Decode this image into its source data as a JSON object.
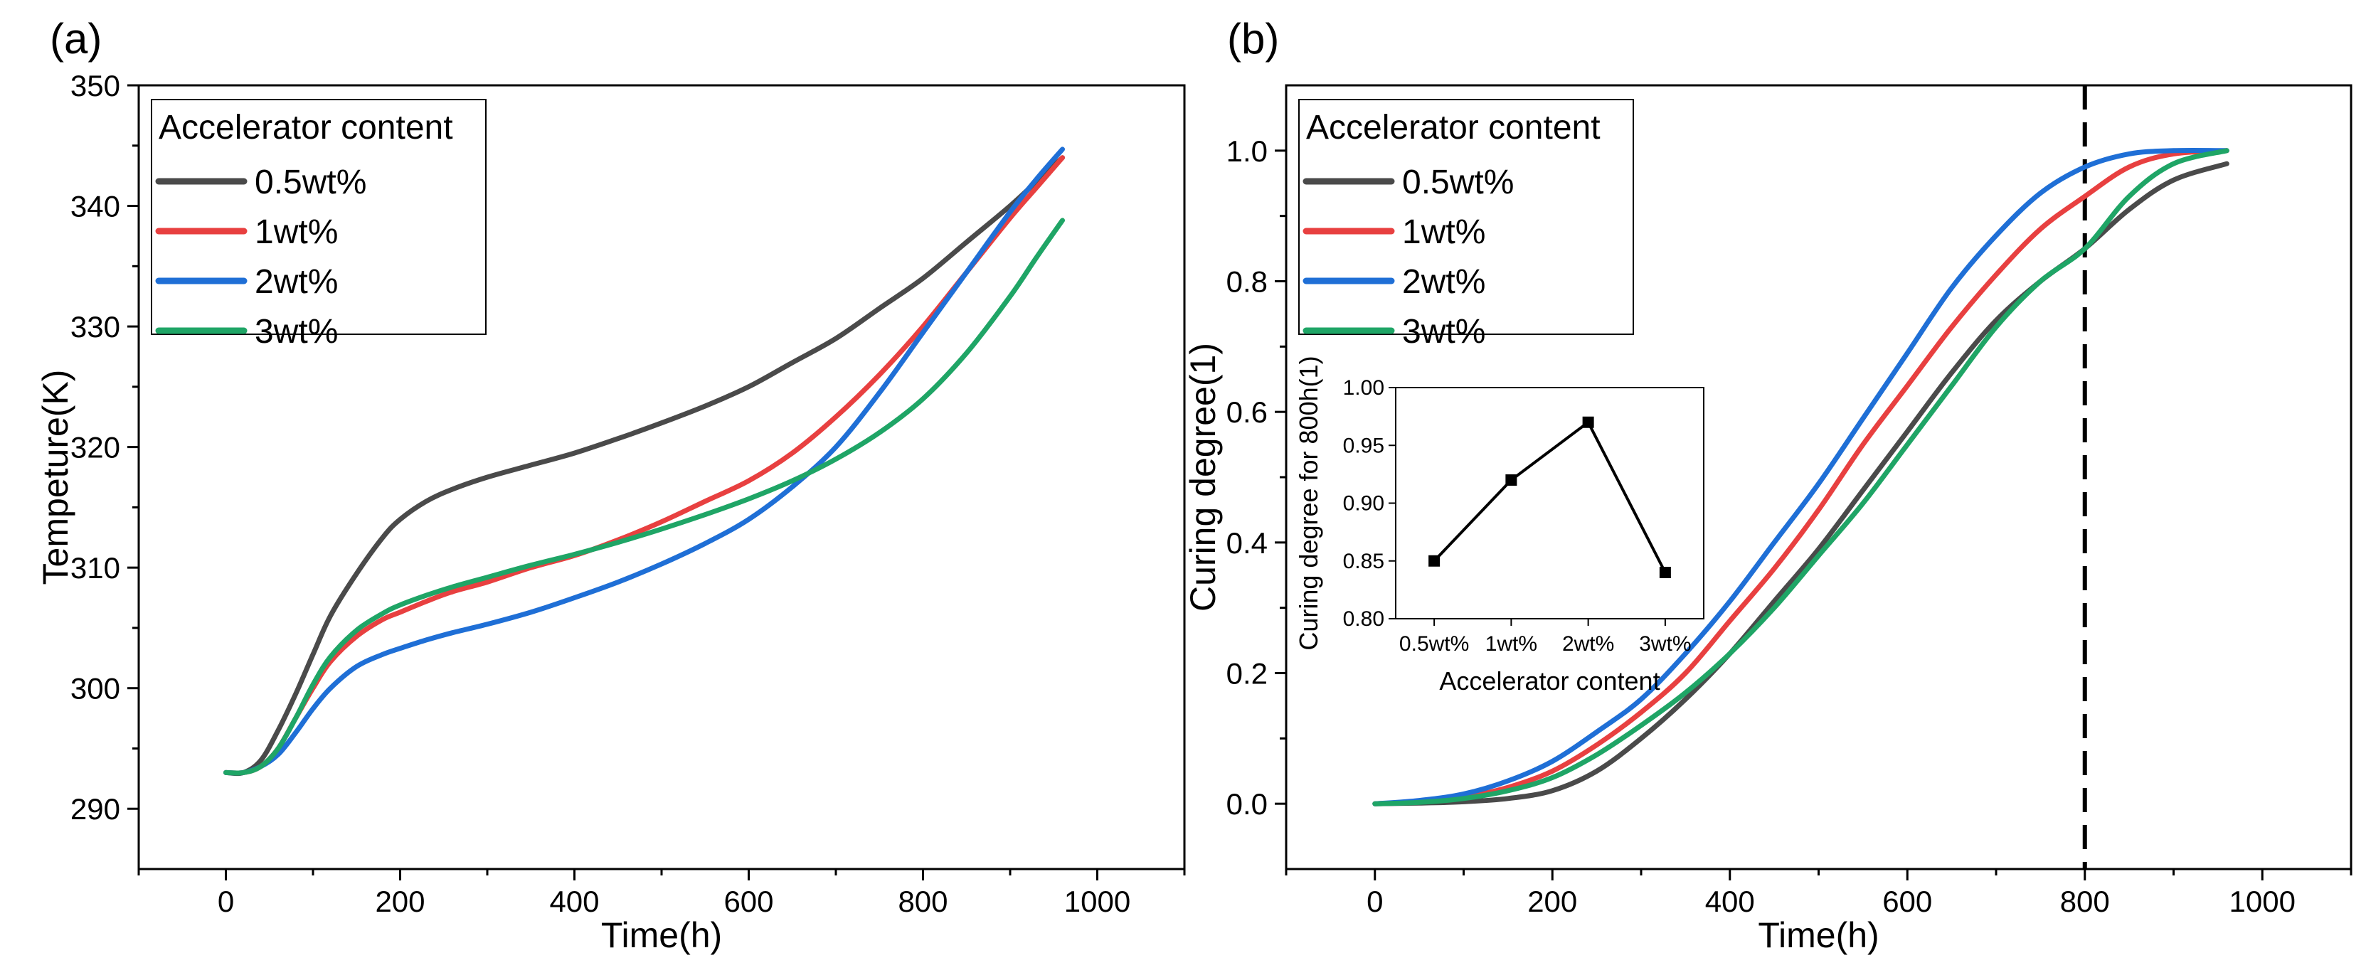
{
  "chart_data": [
    {
      "panel": "(a)",
      "type": "line",
      "xlabel": "Time(h)",
      "ylabel": "Tempeture(K)",
      "xlim": [
        -100,
        1100
      ],
      "ylim": [
        285,
        350
      ],
      "xticks": [
        0,
        200,
        400,
        600,
        800,
        1000
      ],
      "yticks": [
        290,
        300,
        310,
        320,
        330,
        340,
        350
      ],
      "legend": {
        "title": "Accelerator content",
        "position": "top-left"
      },
      "series": [
        {
          "name": "0.5wt%",
          "color": "#4a4a4a",
          "x": [
            0,
            20,
            40,
            60,
            80,
            100,
            120,
            150,
            180,
            200,
            230,
            260,
            300,
            350,
            400,
            450,
            500,
            550,
            600,
            650,
            700,
            750,
            800,
            850,
            900,
            930,
            960
          ],
          "y": [
            293,
            293,
            294,
            296.5,
            299.5,
            302.8,
            306,
            309.5,
            312.5,
            314,
            315.5,
            316.5,
            317.5,
            318.5,
            319.5,
            320.7,
            322,
            323.4,
            325,
            327,
            329,
            331.5,
            334,
            337,
            340,
            342,
            344
          ]
        },
        {
          "name": "1wt%",
          "color": "#e84040",
          "x": [
            0,
            20,
            40,
            60,
            80,
            100,
            120,
            150,
            180,
            200,
            230,
            260,
            300,
            350,
            400,
            450,
            500,
            550,
            600,
            650,
            700,
            750,
            800,
            850,
            900,
            930,
            960
          ],
          "y": [
            293,
            293,
            293.5,
            295,
            297.5,
            300,
            302.2,
            304.3,
            305.7,
            306.3,
            307.2,
            308,
            308.8,
            310,
            311,
            312.3,
            313.8,
            315.5,
            317.2,
            319.5,
            322.5,
            326,
            330,
            334.5,
            339,
            341.5,
            344
          ]
        },
        {
          "name": "2wt%",
          "color": "#1f6fd6",
          "x": [
            0,
            20,
            40,
            60,
            80,
            100,
            120,
            150,
            180,
            200,
            230,
            260,
            300,
            350,
            400,
            450,
            500,
            550,
            600,
            650,
            700,
            750,
            800,
            850,
            900,
            930,
            960
          ],
          "y": [
            293,
            293,
            293.5,
            294.5,
            296.3,
            298.3,
            300,
            301.8,
            302.8,
            303.3,
            304,
            304.6,
            305.3,
            306.3,
            307.5,
            308.8,
            310.3,
            312,
            314,
            316.7,
            320,
            324.5,
            329.5,
            334.5,
            339.5,
            342.2,
            344.7
          ]
        },
        {
          "name": "3wt%",
          "color": "#1fa566",
          "x": [
            0,
            20,
            40,
            60,
            80,
            100,
            120,
            150,
            180,
            200,
            230,
            260,
            300,
            350,
            400,
            450,
            500,
            550,
            600,
            650,
            700,
            750,
            800,
            850,
            900,
            930,
            960
          ],
          "y": [
            293,
            293,
            293.5,
            295,
            297.5,
            300.3,
            302.6,
            304.8,
            306.2,
            306.9,
            307.7,
            308.4,
            309.2,
            310.2,
            311.1,
            312.1,
            313.2,
            314.4,
            315.7,
            317.2,
            319,
            321.2,
            324,
            327.8,
            332.5,
            335.7,
            338.8
          ]
        }
      ]
    },
    {
      "panel": "(b)",
      "type": "line",
      "xlabel": "Time(h)",
      "ylabel": "Curing degree(1)",
      "xlim": [
        -100,
        1100
      ],
      "ylim": [
        -0.1,
        1.1
      ],
      "xticks": [
        0,
        200,
        400,
        600,
        800,
        1000
      ],
      "yticks": [
        0.0,
        0.2,
        0.4,
        0.6,
        0.8,
        1.0
      ],
      "yticklabels": [
        "0.0",
        "0.2",
        "0.4",
        "0.6",
        "0.8",
        "1.0"
      ],
      "vline": 800,
      "legend": {
        "title": "Accelerator content",
        "position": "top-left"
      },
      "series": [
        {
          "name": "0.5wt%",
          "color": "#4a4a4a",
          "x": [
            0,
            50,
            100,
            150,
            200,
            250,
            300,
            350,
            400,
            450,
            500,
            550,
            600,
            650,
            700,
            750,
            800,
            850,
            900,
            960
          ],
          "y": [
            0,
            0.001,
            0.003,
            0.008,
            0.02,
            0.05,
            0.1,
            0.16,
            0.23,
            0.31,
            0.39,
            0.48,
            0.57,
            0.66,
            0.74,
            0.8,
            0.85,
            0.91,
            0.955,
            0.98
          ]
        },
        {
          "name": "1wt%",
          "color": "#e84040",
          "x": [
            0,
            50,
            100,
            150,
            200,
            250,
            300,
            350,
            400,
            450,
            500,
            550,
            600,
            650,
            700,
            750,
            800,
            850,
            900,
            960
          ],
          "y": [
            0,
            0.003,
            0.01,
            0.025,
            0.05,
            0.09,
            0.14,
            0.2,
            0.28,
            0.36,
            0.45,
            0.55,
            0.64,
            0.73,
            0.81,
            0.88,
            0.93,
            0.975,
            0.995,
            1.0
          ]
        },
        {
          "name": "2wt%",
          "color": "#1f6fd6",
          "x": [
            0,
            50,
            100,
            150,
            200,
            250,
            300,
            350,
            400,
            450,
            500,
            550,
            600,
            650,
            700,
            750,
            800,
            850,
            900,
            960
          ],
          "y": [
            0,
            0.005,
            0.015,
            0.035,
            0.065,
            0.11,
            0.16,
            0.23,
            0.31,
            0.4,
            0.49,
            0.59,
            0.69,
            0.79,
            0.87,
            0.935,
            0.975,
            0.995,
            1.0,
            1.0
          ]
        },
        {
          "name": "3wt%",
          "color": "#1fa566",
          "x": [
            0,
            50,
            100,
            150,
            200,
            250,
            300,
            350,
            400,
            450,
            500,
            550,
            600,
            650,
            700,
            750,
            800,
            850,
            900,
            960
          ],
          "y": [
            0,
            0.002,
            0.008,
            0.02,
            0.04,
            0.075,
            0.12,
            0.17,
            0.23,
            0.3,
            0.38,
            0.46,
            0.55,
            0.64,
            0.73,
            0.8,
            0.85,
            0.93,
            0.98,
            1.0
          ]
        }
      ]
    },
    {
      "panel": "(b) inset",
      "type": "line",
      "xlabel": "Accelerator content",
      "ylabel": "Curing degree for 800h(1)",
      "categories": [
        "0.5wt%",
        "1wt%",
        "2wt%",
        "3wt%"
      ],
      "values": [
        0.85,
        0.92,
        0.97,
        0.84
      ],
      "ylim": [
        0.8,
        1.0
      ],
      "yticks": [
        0.8,
        0.85,
        0.9,
        0.95,
        1.0
      ],
      "yticklabels": [
        "0.80",
        "0.85",
        "0.90",
        "0.95",
        "1.00"
      ],
      "color": "#000000"
    }
  ],
  "panels": {
    "a_label": "(a)",
    "b_label": "(b)"
  }
}
